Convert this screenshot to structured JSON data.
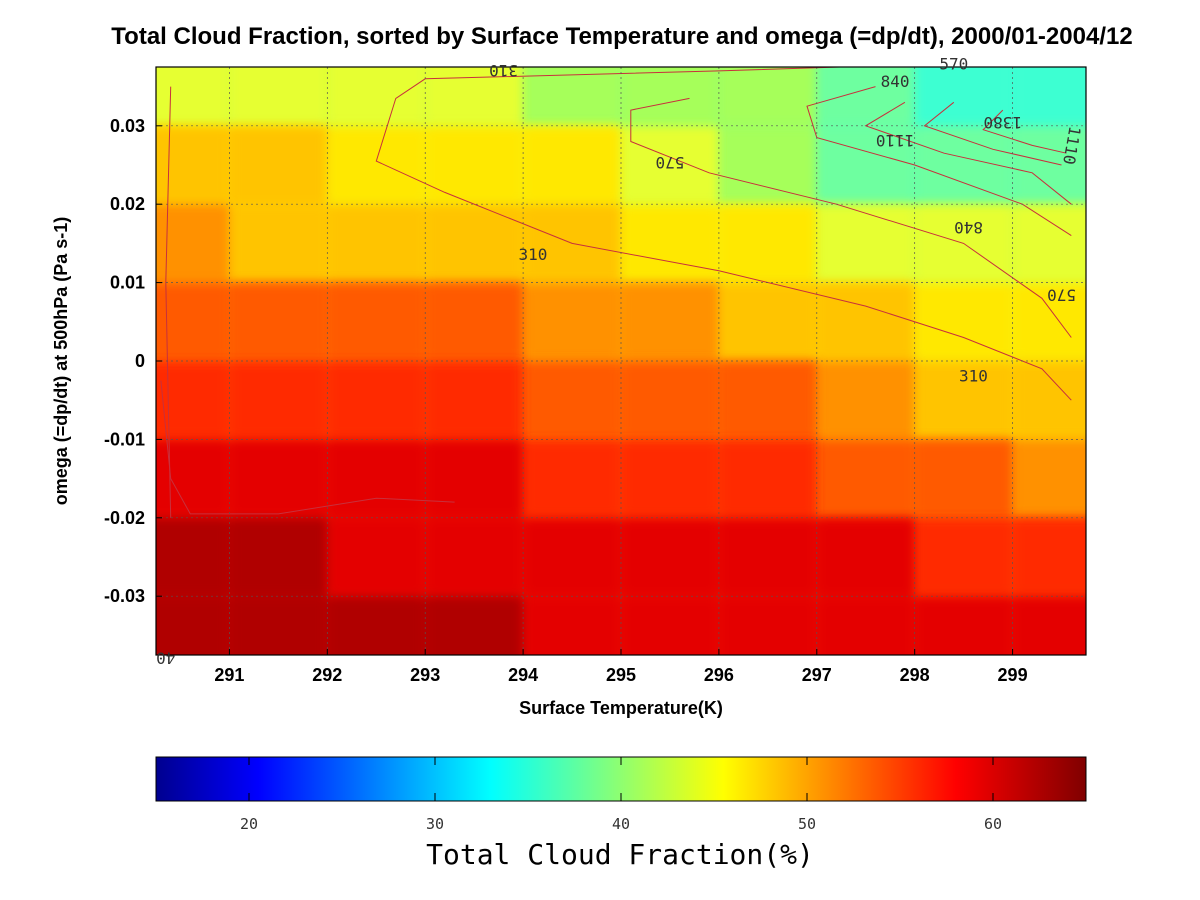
{
  "chart_data": {
    "type": "heatmap",
    "title": "Total Cloud Fraction, sorted by Surface Temperature and omega (=dp/dt), 2000/01-2004/12",
    "xlabel": "Surface Temperature(K)",
    "ylabel": "omega (=dp/dt) at 500hPa (Pa s-1)",
    "x_ticks": [
      "291",
      "292",
      "293",
      "294",
      "295",
      "296",
      "297",
      "298",
      "299"
    ],
    "y_ticks": [
      "0.03",
      "0.02",
      "0.01",
      "0",
      "-0.01",
      "-0.02",
      "-0.03"
    ],
    "xlim": [
      290.25,
      299.75
    ],
    "ylim": [
      -0.0375,
      0.0375
    ],
    "grid": true,
    "colorbar": {
      "label": "Total Cloud Fraction(%)",
      "ticks": [
        "20",
        "30",
        "40",
        "50",
        "60"
      ],
      "range": [
        15,
        65
      ],
      "colormap": "jet"
    },
    "filled_levels": [
      {
        "value": 62.5,
        "color": "#b00000"
      },
      {
        "value": 60,
        "color": "#e40000"
      },
      {
        "value": 57.5,
        "color": "#ff2a00"
      },
      {
        "value": 55,
        "color": "#ff5a00"
      },
      {
        "value": 52.5,
        "color": "#ff9100"
      },
      {
        "value": 50,
        "color": "#ffc400"
      },
      {
        "value": 47.5,
        "color": "#ffe800"
      },
      {
        "value": 45,
        "color": "#e6ff30"
      },
      {
        "value": 42.5,
        "color": "#a6ff5a"
      },
      {
        "value": 40,
        "color": "#6effa0"
      },
      {
        "value": 37.5,
        "color": "#3effd2"
      }
    ],
    "cloud_fraction_grid": {
      "x": [
        290.5,
        291.5,
        292.5,
        293.5,
        294.5,
        295.5,
        296.5,
        297.5,
        298.5,
        299.5
      ],
      "y": [
        -0.035,
        -0.025,
        -0.015,
        -0.005,
        0.005,
        0.015,
        0.025,
        0.035
      ],
      "z": [
        [
          64,
          65,
          63,
          63,
          62,
          61,
          62,
          62,
          62,
          60
        ],
        [
          63,
          64,
          61,
          61,
          60,
          61,
          60,
          60,
          59,
          58
        ],
        [
          60,
          61,
          60,
          60,
          59,
          58,
          58,
          57,
          55,
          54
        ],
        [
          59,
          59,
          58,
          58,
          57,
          56,
          55,
          54,
          52,
          51
        ],
        [
          56,
          56,
          55,
          55,
          54,
          53,
          51,
          50,
          49,
          48
        ],
        [
          53,
          52,
          52,
          51,
          50,
          49,
          48,
          47,
          45,
          45
        ],
        [
          50,
          50,
          49,
          48,
          48,
          47,
          44,
          42,
          40,
          40
        ],
        [
          47,
          47,
          46,
          45,
          44,
          44,
          43,
          40,
          39,
          39
        ]
      ]
    },
    "contour_labels": [
      "310",
      "570",
      "840",
      "1110",
      "1380",
      "40"
    ]
  }
}
